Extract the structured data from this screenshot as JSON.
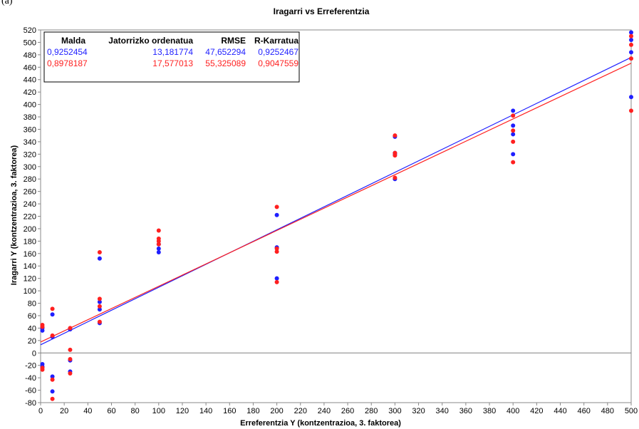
{
  "figure_label": "(a)",
  "chart_data": {
    "type": "scatter",
    "title": "Iragarri vs Erreferentzia",
    "xlabel": "Erreferentzia Y (kontzentrazioa, 3. faktorea)",
    "ylabel": "Iragarri Y (kontzentrazioa, 3. faktorea)",
    "xlim": [
      0,
      500
    ],
    "ylim": [
      -80,
      520
    ],
    "xticks": [
      0,
      20,
      40,
      60,
      80,
      100,
      120,
      140,
      160,
      180,
      200,
      220,
      240,
      260,
      280,
      300,
      320,
      340,
      360,
      380,
      400,
      420,
      440,
      460,
      480,
      500
    ],
    "yticks": [
      -80,
      -60,
      -40,
      -20,
      0,
      20,
      40,
      60,
      80,
      100,
      120,
      140,
      160,
      180,
      200,
      220,
      240,
      260,
      280,
      300,
      320,
      340,
      360,
      380,
      400,
      420,
      440,
      460,
      480,
      500,
      520
    ],
    "grid": false,
    "legend_position": "top-left",
    "table_headers": [
      "Malda",
      "Jatorrizko ordenatua",
      "RMSE",
      "R-Karratua"
    ],
    "series": [
      {
        "color": "#1f1fff",
        "slope": "0,9252454",
        "intercept": "13,181774",
        "rmse": "47,652294",
        "r_squared": "0,9252467",
        "fit": {
          "slope": 0.9252454,
          "intercept": 13.181774
        },
        "points": [
          [
            1.5,
            40
          ],
          [
            1.5,
            36
          ],
          [
            1.5,
            -18
          ],
          [
            1.5,
            -22
          ],
          [
            10,
            62
          ],
          [
            10,
            26
          ],
          [
            10,
            -38
          ],
          [
            10,
            -62
          ],
          [
            25,
            38
          ],
          [
            25,
            -12
          ],
          [
            25,
            -30
          ],
          [
            50,
            152
          ],
          [
            50,
            82
          ],
          [
            50,
            70
          ],
          [
            50,
            48
          ],
          [
            100,
            175
          ],
          [
            100,
            168
          ],
          [
            100,
            162
          ],
          [
            200,
            222
          ],
          [
            200,
            170
          ],
          [
            200,
            120
          ],
          [
            300,
            348
          ],
          [
            300,
            322
          ],
          [
            300,
            320
          ],
          [
            300,
            280
          ],
          [
            400,
            390
          ],
          [
            400,
            366
          ],
          [
            400,
            352
          ],
          [
            400,
            320
          ],
          [
            500,
            516
          ],
          [
            500,
            504
          ],
          [
            500,
            484
          ],
          [
            500,
            412
          ]
        ]
      },
      {
        "color": "#ff2020",
        "slope": "0,8978187",
        "intercept": "17,577013",
        "rmse": "55,325089",
        "r_squared": "0,9047559",
        "fit": {
          "slope": 0.8978187,
          "intercept": 17.577013
        },
        "points": [
          [
            1.5,
            45
          ],
          [
            1.5,
            42
          ],
          [
            1.5,
            -24
          ],
          [
            1.5,
            -27
          ],
          [
            10,
            71
          ],
          [
            10,
            28
          ],
          [
            10,
            -43
          ],
          [
            10,
            -74
          ],
          [
            25,
            40
          ],
          [
            25,
            5
          ],
          [
            25,
            -10
          ],
          [
            25,
            -33
          ],
          [
            50,
            162
          ],
          [
            50,
            87
          ],
          [
            50,
            75
          ],
          [
            50,
            50
          ],
          [
            100,
            197
          ],
          [
            100,
            184
          ],
          [
            100,
            180
          ],
          [
            100,
            175
          ],
          [
            200,
            235
          ],
          [
            200,
            168
          ],
          [
            200,
            163
          ],
          [
            200,
            114
          ],
          [
            300,
            350
          ],
          [
            300,
            322
          ],
          [
            300,
            318
          ],
          [
            300,
            282
          ],
          [
            400,
            382
          ],
          [
            400,
            358
          ],
          [
            400,
            340
          ],
          [
            400,
            307
          ],
          [
            500,
            510
          ],
          [
            500,
            496
          ],
          [
            500,
            474
          ],
          [
            500,
            390
          ]
        ]
      }
    ]
  }
}
